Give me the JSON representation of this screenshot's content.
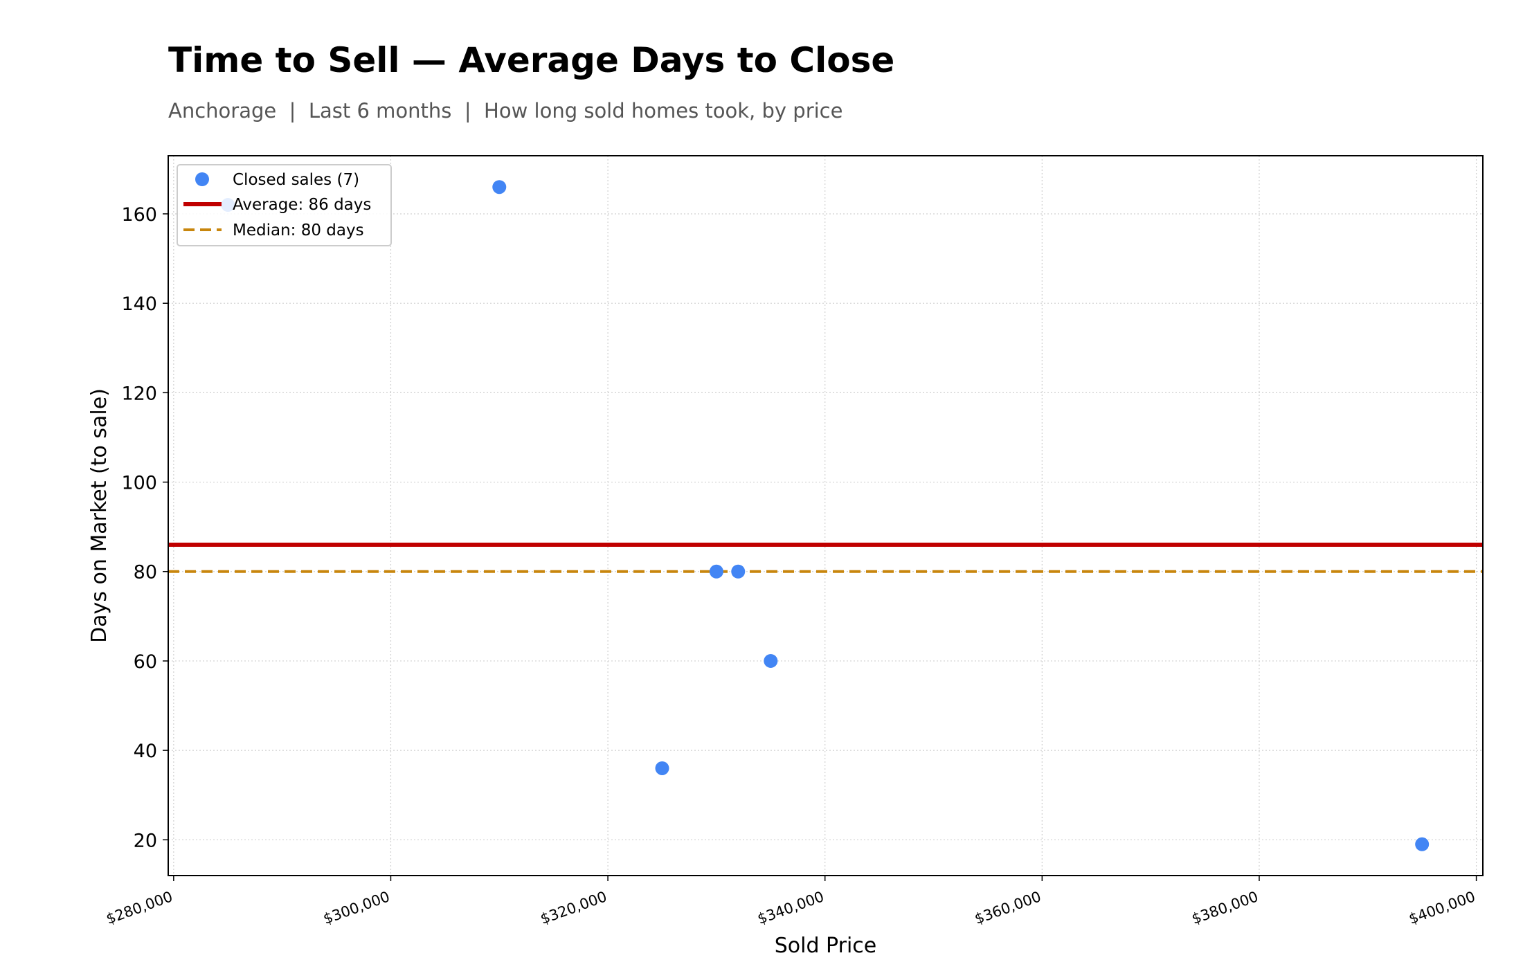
{
  "chart_data": {
    "type": "scatter",
    "title": "Time to Sell — Average Days to Close",
    "subtitle": "Anchorage  |  Last 6 months  |  How long sold homes took, by price",
    "xlabel": "Sold Price",
    "ylabel": "Days on Market (to sale)",
    "xlim": [
      279500,
      400600
    ],
    "ylim": [
      12,
      173
    ],
    "x_ticks": [
      280000,
      300000,
      320000,
      340000,
      360000,
      380000,
      400000
    ],
    "x_tick_labels": [
      "$280,000",
      "$300,000",
      "$320,000",
      "$340,000",
      "$360,000",
      "$380,000",
      "$400,000"
    ],
    "y_ticks": [
      20,
      40,
      60,
      80,
      100,
      120,
      140,
      160
    ],
    "y_tick_labels": [
      "20",
      "40",
      "60",
      "80",
      "100",
      "120",
      "140",
      "160"
    ],
    "grid": true,
    "legend_position": "top-left",
    "series": [
      {
        "name": "Closed sales (7)",
        "kind": "scatter",
        "color": "#4285f4",
        "points": [
          {
            "x": 285000,
            "y": 162
          },
          {
            "x": 310000,
            "y": 166
          },
          {
            "x": 325000,
            "y": 36
          },
          {
            "x": 330000,
            "y": 80
          },
          {
            "x": 332000,
            "y": 80
          },
          {
            "x": 335000,
            "y": 60
          },
          {
            "x": 395000,
            "y": 19
          }
        ]
      },
      {
        "name": "Average: 86 days",
        "kind": "hline",
        "value": 86,
        "color": "#c00000",
        "style": "solid"
      },
      {
        "name": "Median: 80 days",
        "kind": "hline",
        "value": 80,
        "color": "#c8860d",
        "style": "dashed"
      }
    ]
  }
}
